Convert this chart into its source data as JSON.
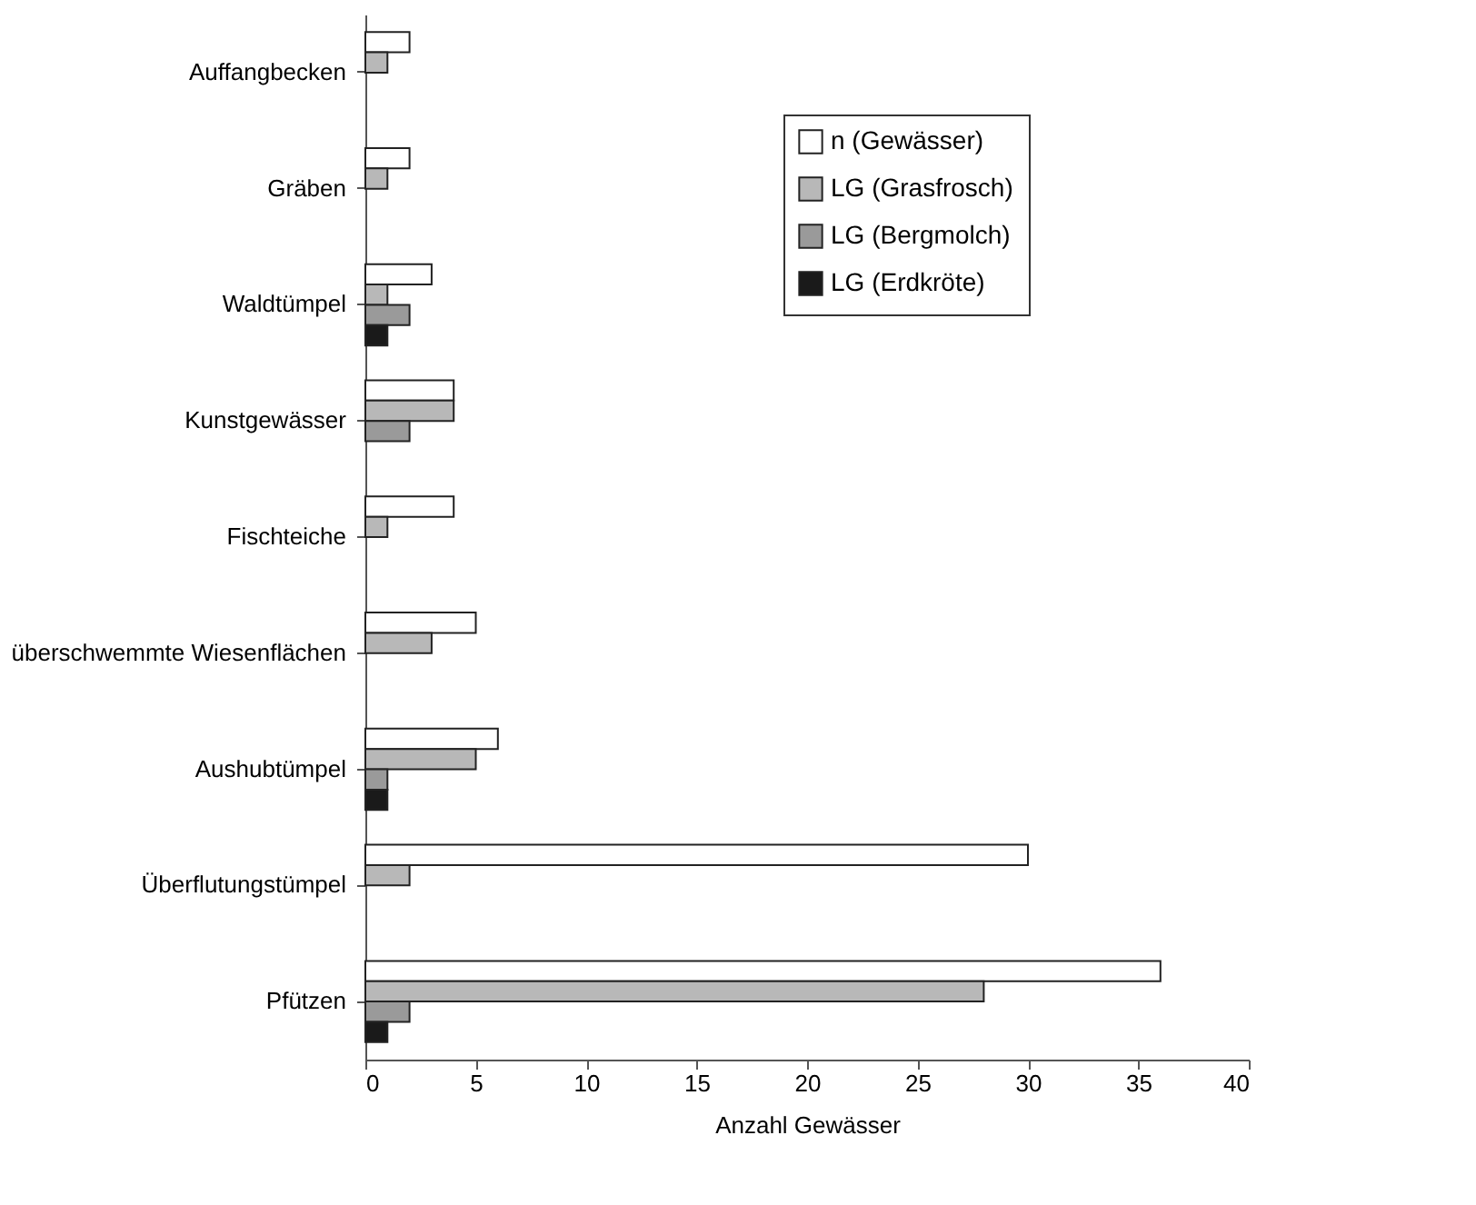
{
  "chart_data": {
    "type": "bar",
    "orientation": "horizontal",
    "xlabel": "Anzahl Gewässer",
    "categories": [
      "Auffangbecken",
      "Gräben",
      "Waldtümpel",
      "Kunstgewässer",
      "Fischteiche",
      "überschwemmte Wiesenflächen",
      "Aushubtümpel",
      "Überflutungstümpel",
      "Pfützen"
    ],
    "series": [
      {
        "name": "n (Gewässer)",
        "color": "#ffffff",
        "values": [
          2,
          2,
          3,
          4,
          4,
          5,
          6,
          30,
          36
        ]
      },
      {
        "name": "LG (Grasfrosch)",
        "color": "#b8b8b8",
        "values": [
          1,
          1,
          1,
          4,
          1,
          3,
          5,
          2,
          28
        ]
      },
      {
        "name": "LG (Bergmolch)",
        "color": "#9a9a9a",
        "values": [
          null,
          null,
          2,
          2,
          null,
          null,
          1,
          null,
          2
        ]
      },
      {
        "name": "LG (Erdkröte)",
        "color": "#1a1a1a",
        "values": [
          null,
          null,
          1,
          null,
          null,
          null,
          1,
          null,
          1
        ]
      }
    ],
    "xlim": [
      0,
      40
    ],
    "xticks": [
      0,
      5,
      10,
      15,
      20,
      25,
      30,
      35,
      40
    ],
    "grid": false,
    "legend": "top right"
  }
}
